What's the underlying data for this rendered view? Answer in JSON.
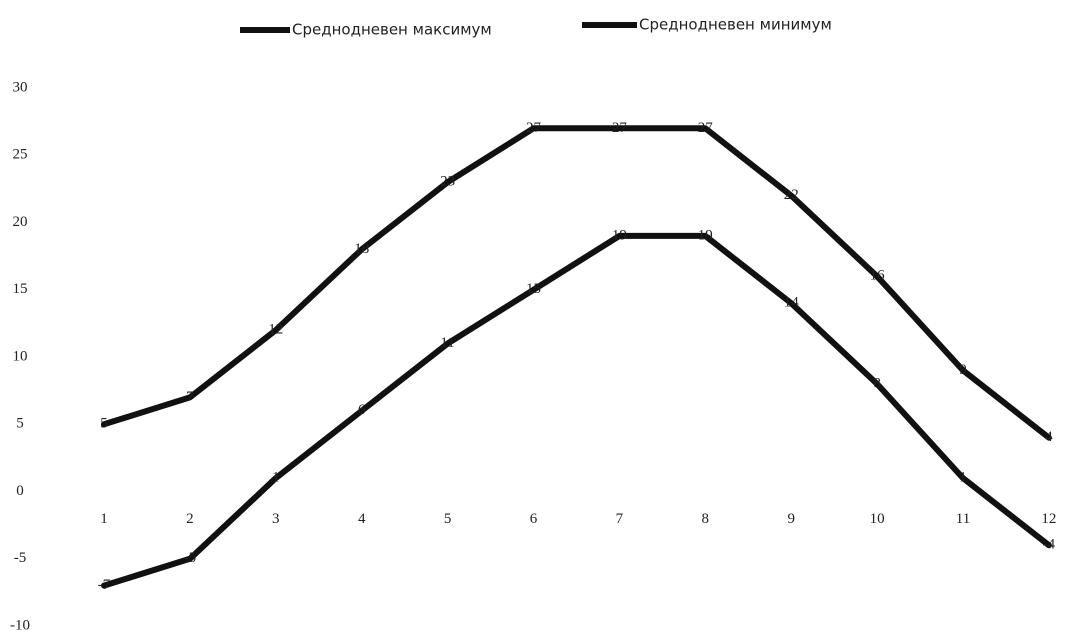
{
  "chart_data": {
    "type": "line",
    "title": "",
    "xlabel": "",
    "ylabel": "",
    "categories": [
      "1",
      "2",
      "3",
      "4",
      "5",
      "6",
      "7",
      "8",
      "9",
      "10",
      "11",
      "12"
    ],
    "yticks": [
      "30",
      "25",
      "20",
      "15",
      "10",
      "5",
      "0",
      "-5",
      "-10"
    ],
    "ylim": [
      -10,
      30
    ],
    "grid": false,
    "legend_position": "top",
    "series": [
      {
        "name": "Среднодневен максимум",
        "color": "#111111",
        "values": [
          5,
          7,
          12,
          18,
          23,
          27,
          27,
          27,
          22,
          16,
          9,
          4
        ],
        "labels": [
          "5",
          "7",
          "12",
          "18",
          "23",
          "27",
          "27",
          "27",
          "22",
          "16",
          "9",
          "4"
        ]
      },
      {
        "name": "Среднодневен минимум",
        "color": "#111111",
        "values": [
          -7,
          -5,
          1,
          6,
          11,
          15,
          19,
          19,
          14,
          8,
          1,
          -4
        ],
        "labels": [
          "-7",
          "-5",
          "1",
          "6",
          "11",
          "15",
          "19",
          "19",
          "14",
          "8",
          "1",
          "-4"
        ]
      }
    ]
  }
}
